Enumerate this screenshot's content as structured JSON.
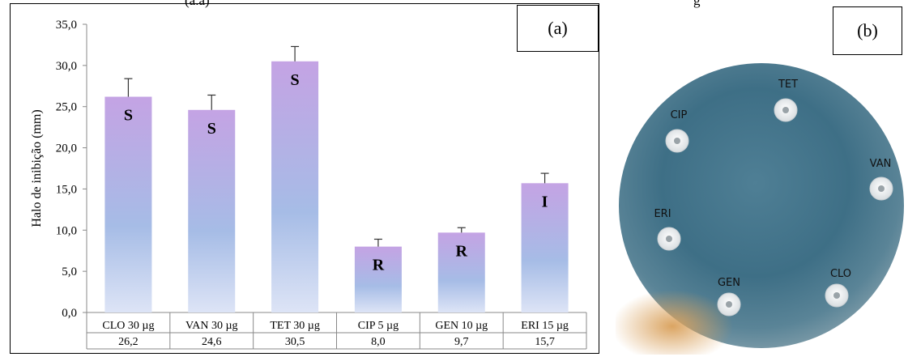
{
  "top_fragments": {
    "left": "(a.a)",
    "right": "g"
  },
  "panel_a": {
    "tag": "(a)",
    "chart_data": {
      "type": "bar",
      "categories": [
        "CLO 30 µg",
        "VAN 30 µg",
        "TET 30 µg",
        "CIP 5 µg",
        "GEN 10 µg",
        "ERI 15 µg"
      ],
      "values": [
        26.2,
        24.6,
        30.5,
        8.0,
        9.7,
        15.7
      ],
      "value_labels": [
        "26,2",
        "24,6",
        "30,5",
        "8,0",
        "9,7",
        "15,7"
      ],
      "error": [
        2.2,
        1.8,
        1.8,
        0.9,
        0.6,
        1.2
      ],
      "bar_labels": [
        "S",
        "S",
        "S",
        "R",
        "R",
        "I"
      ],
      "ylabel": "Halo de inibição (mm)",
      "ylim": [
        0,
        35
      ],
      "yticks": [
        "0,0",
        "5,0",
        "10,0",
        "15,0",
        "20,0",
        "25,0",
        "30,0",
        "35,0"
      ],
      "grid": false,
      "bar_gradient": [
        "#c4a3e4",
        "#a6bce6",
        "#dde4f6"
      ]
    }
  },
  "panel_b": {
    "tag": "(b)",
    "disks": [
      {
        "label": "TET"
      },
      {
        "label": "CIP"
      },
      {
        "label": "VAN"
      },
      {
        "label": "ERI"
      },
      {
        "label": "GEN"
      },
      {
        "label": "CLO"
      }
    ]
  }
}
